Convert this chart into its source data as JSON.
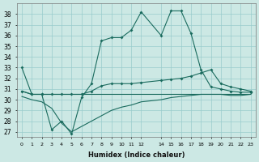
{
  "xlabel": "Humidex (Indice chaleur)",
  "bg_color": "#cce8e4",
  "grid_color": "#99cccc",
  "line_color": "#1a6b5e",
  "ylim": [
    26.5,
    39.0
  ],
  "yticks": [
    27,
    28,
    29,
    30,
    31,
    32,
    33,
    34,
    35,
    36,
    37,
    38
  ],
  "xlim": [
    -0.5,
    23.5
  ],
  "x_positions": [
    0,
    1,
    2,
    3,
    4,
    5,
    6,
    7,
    8,
    9,
    10,
    11,
    12,
    14,
    15,
    16,
    17,
    18,
    19,
    20,
    21,
    22,
    23
  ],
  "x_labels": [
    "0",
    "1",
    "2",
    "3",
    "4",
    "5",
    "6",
    "7",
    "8",
    "9",
    "10",
    "11",
    "12",
    "14",
    "15",
    "16",
    "17",
    "18",
    "19",
    "20",
    "21",
    "22",
    "23"
  ],
  "s1_x": [
    0,
    1,
    2,
    3,
    4,
    5,
    6,
    7,
    8,
    9,
    10,
    11,
    12,
    14,
    15,
    16,
    17,
    18,
    19,
    20,
    21,
    22,
    23
  ],
  "s1_y": [
    33.0,
    30.5,
    30.5,
    27.2,
    28.0,
    26.8,
    30.2,
    31.5,
    35.5,
    35.8,
    35.8,
    36.5,
    38.2,
    36.0,
    38.3,
    38.3,
    36.2,
    32.8,
    31.2,
    31.0,
    30.8,
    30.7,
    30.7
  ],
  "s2_x": [
    0,
    1,
    2,
    3,
    4,
    5,
    6,
    7,
    8,
    9,
    10,
    11,
    12,
    14,
    15,
    16,
    17,
    18,
    19,
    20,
    21,
    22,
    23
  ],
  "s2_y": [
    30.8,
    30.5,
    30.5,
    30.5,
    30.5,
    30.5,
    30.5,
    30.8,
    31.3,
    31.5,
    31.5,
    31.5,
    31.6,
    31.8,
    31.9,
    32.0,
    32.2,
    32.5,
    32.8,
    31.5,
    31.2,
    31.0,
    30.8
  ],
  "s3_x": [
    0,
    1,
    2,
    3,
    4,
    5,
    6,
    7,
    8,
    9,
    10,
    11,
    12,
    14,
    15,
    16,
    17,
    18,
    19,
    20,
    21,
    22,
    23
  ],
  "s3_y": [
    30.8,
    30.5,
    30.5,
    30.5,
    30.5,
    30.5,
    30.5,
    30.5,
    30.5,
    30.5,
    30.5,
    30.5,
    30.5,
    30.5,
    30.5,
    30.5,
    30.5,
    30.5,
    30.5,
    30.5,
    30.5,
    30.5,
    30.5
  ],
  "s4_x": [
    0,
    1,
    2,
    3,
    4,
    5,
    6,
    7,
    8,
    9,
    10,
    11,
    12,
    14,
    15,
    16,
    17,
    18,
    19,
    20,
    21,
    22,
    23
  ],
  "s4_y": [
    30.3,
    30.0,
    29.8,
    29.2,
    27.8,
    27.0,
    27.5,
    28.0,
    28.5,
    29.0,
    29.3,
    29.5,
    29.8,
    30.0,
    30.2,
    30.3,
    30.4,
    30.5,
    30.5,
    30.5,
    30.4,
    30.4,
    30.5
  ]
}
